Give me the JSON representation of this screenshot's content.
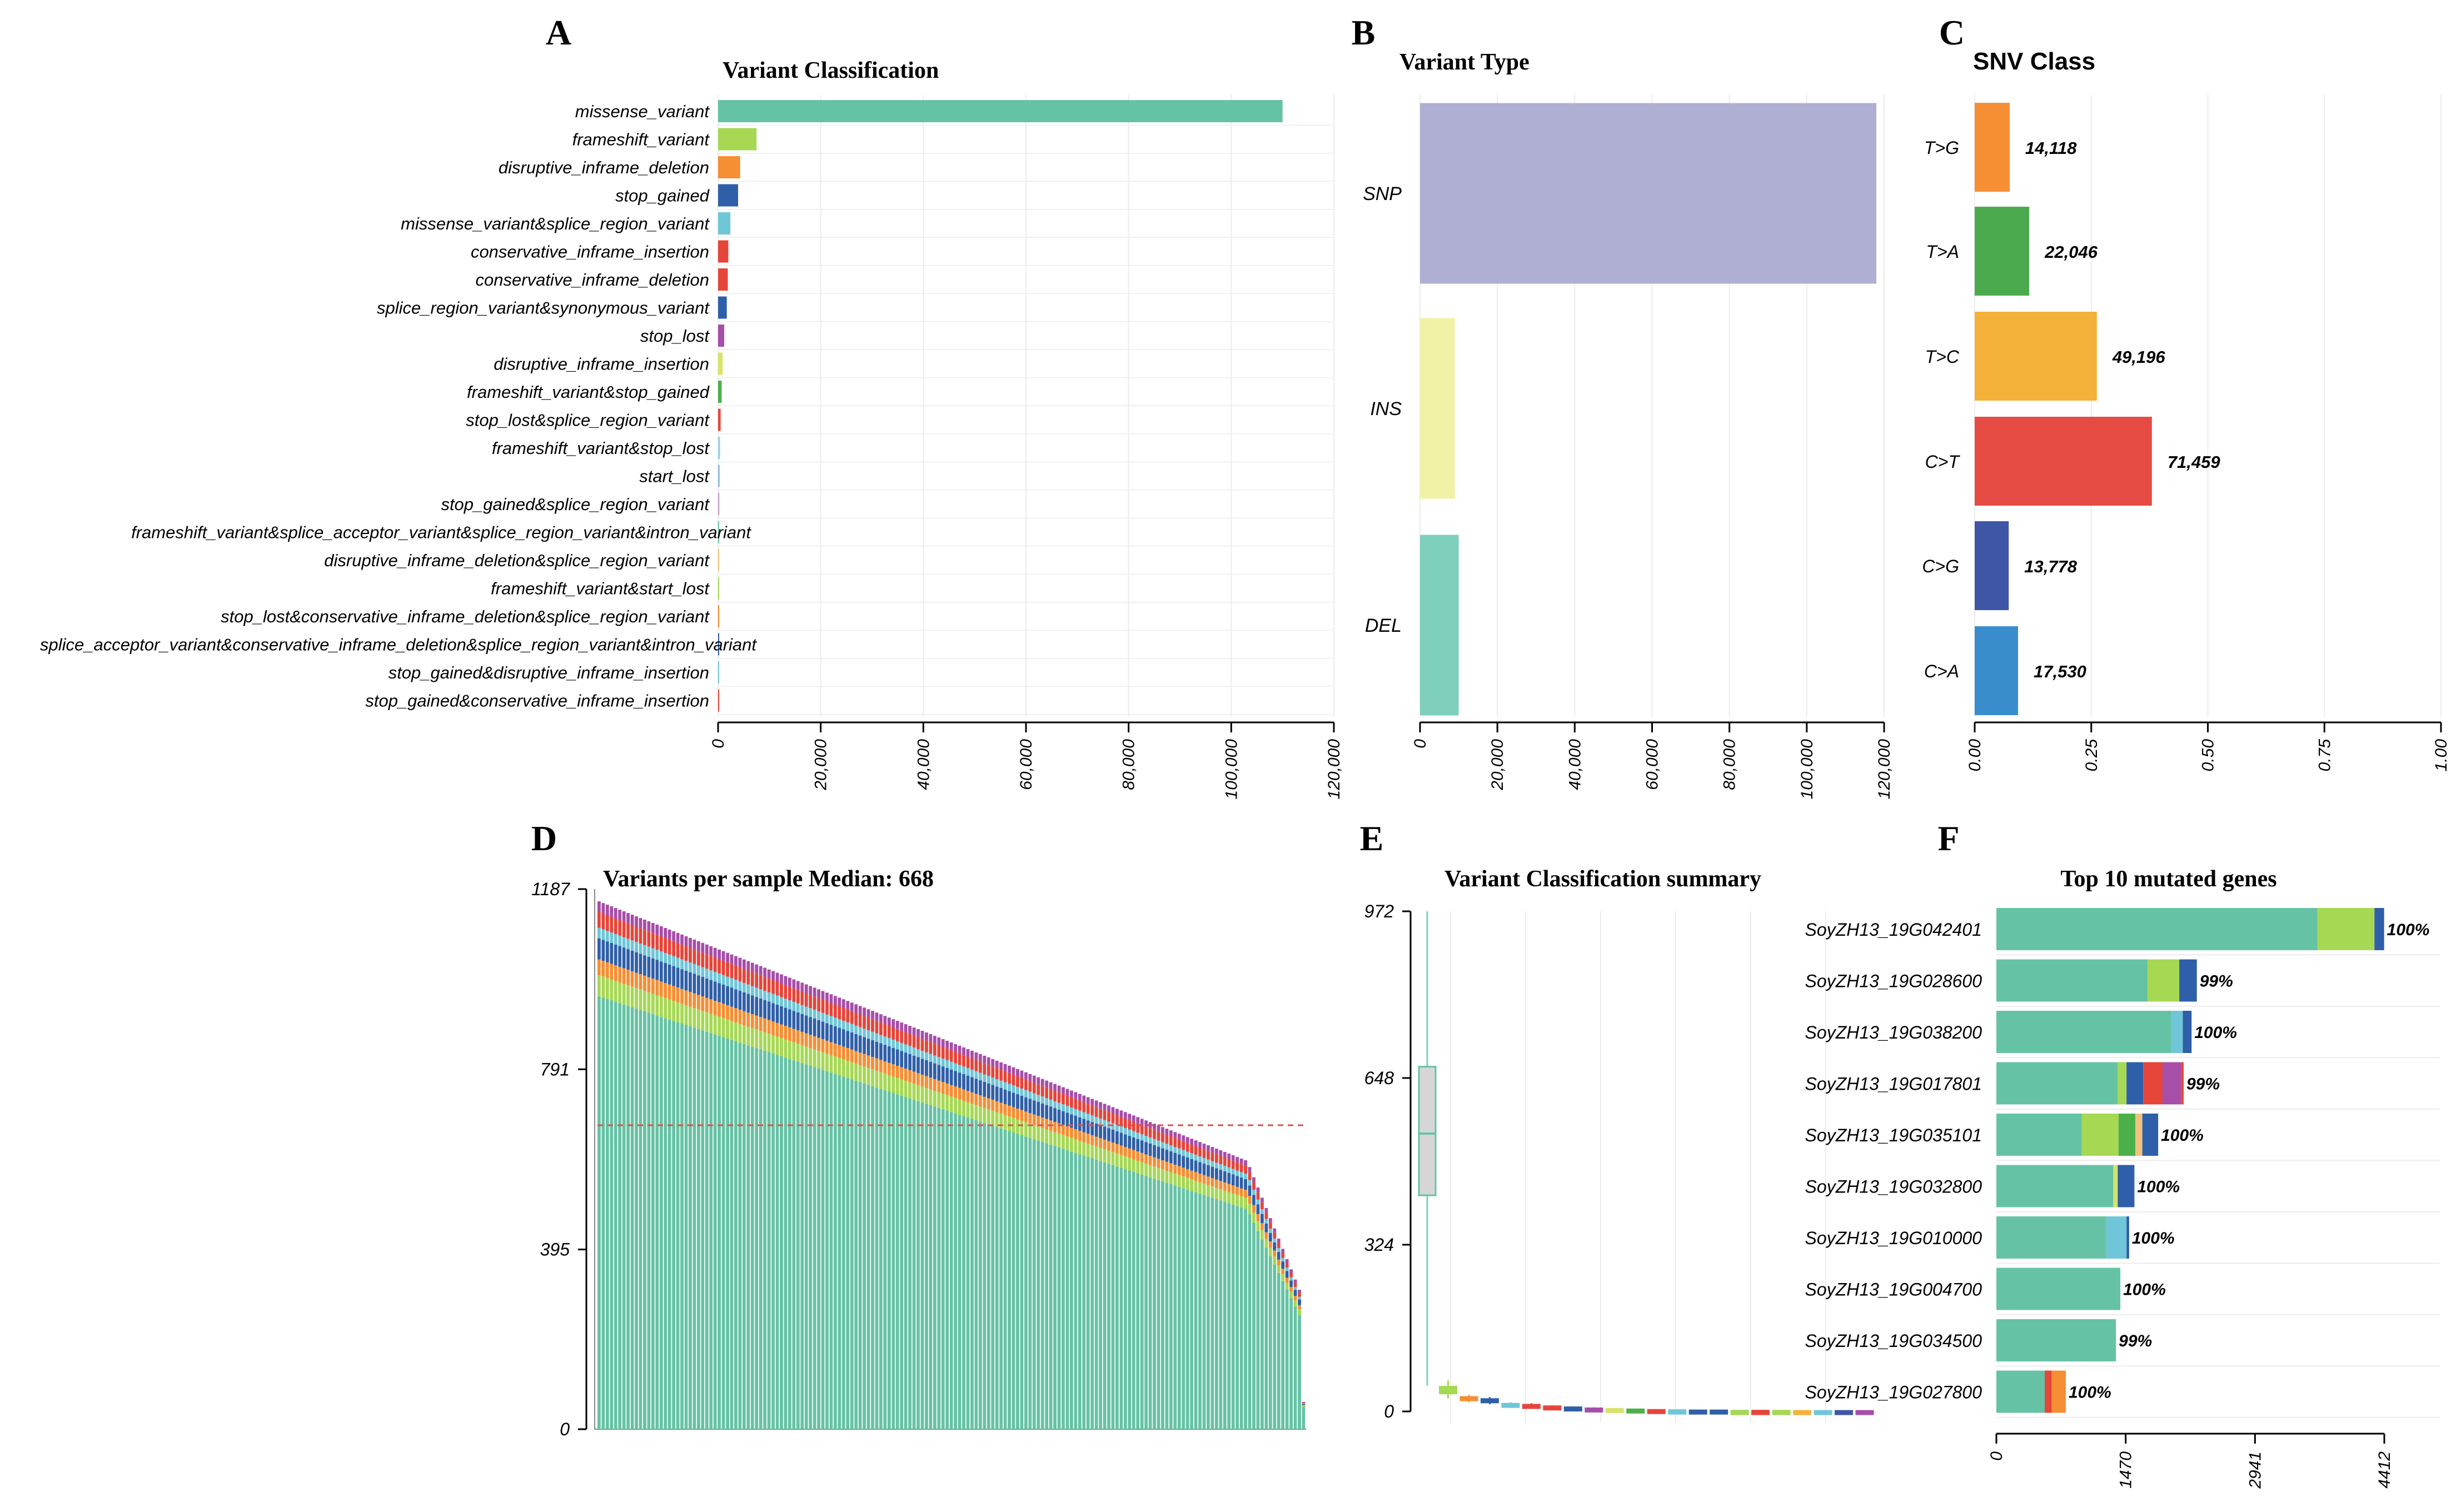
{
  "panel_letters": [
    "A",
    "B",
    "C",
    "D",
    "E",
    "F"
  ],
  "colors": {
    "missense": "#66c2a5",
    "frameshift": "#a6d854",
    "inframe_del": "#f68e33",
    "stop_gained": "#2f5fa8",
    "splice": "#6fc6d8",
    "ins_del": "#e6453a",
    "purple": "#a64ea8",
    "snp": "#aeafd3",
    "ins": "#f1f2a6",
    "del": "#7fcfbd",
    "grid": "#ececec",
    "median_line": "#d9534f"
  },
  "chart_data": [
    {
      "id": "A",
      "type": "bar",
      "orientation": "horizontal",
      "title": "Variant Classification",
      "categories": [
        "missense_variant",
        "frameshift_variant",
        "disruptive_inframe_deletion",
        "stop_gained",
        "missense_variant&splice_region_variant",
        "conservative_inframe_insertion",
        "conservative_inframe_deletion",
        "splice_region_variant&synonymous_variant",
        "stop_lost",
        "disruptive_inframe_insertion",
        "frameshift_variant&stop_gained",
        "stop_lost&splice_region_variant",
        "frameshift_variant&stop_lost",
        "start_lost",
        "stop_gained&splice_region_variant",
        "frameshift_variant&splice_acceptor_variant&splice_region_variant&intron_variant",
        "disruptive_inframe_deletion&splice_region_variant",
        "frameshift_variant&start_lost",
        "stop_lost&conservative_inframe_deletion&splice_region_variant",
        "splice_acceptor_variant&conservative_inframe_deletion&splice_region_variant&intron_variant",
        "stop_gained&disruptive_inframe_insertion",
        "stop_gained&conservative_inframe_insertion"
      ],
      "values": [
        110000,
        7500,
        4300,
        3900,
        2400,
        2000,
        1900,
        1700,
        1200,
        900,
        700,
        500,
        400,
        300,
        250,
        200,
        180,
        150,
        120,
        100,
        80,
        60
      ],
      "colors": [
        "#66c2a5",
        "#a6d854",
        "#f68e33",
        "#2f5fa8",
        "#6fc6d8",
        "#e6453a",
        "#e6453a",
        "#2f5fa8",
        "#a64ea8",
        "#d7e36b",
        "#4bb04a",
        "#e6453a",
        "#9ed0e6",
        "#8fb8e0",
        "#c7a0c7",
        "#66c2a5",
        "#f1c27d",
        "#a6d854",
        "#f68e33",
        "#2f5fa8",
        "#6fc6d8",
        "#e6453a"
      ],
      "xlim": [
        0,
        120000
      ],
      "xticks": [
        "0",
        "20,000",
        "40,000",
        "60,000",
        "80,000",
        "100,000",
        "120,000"
      ]
    },
    {
      "id": "B",
      "type": "bar",
      "orientation": "horizontal",
      "title": "Variant Type",
      "categories": [
        "SNP",
        "INS",
        "DEL"
      ],
      "values": [
        118000,
        9000,
        10000
      ],
      "colors": [
        "#aeafd3",
        "#f1f2a6",
        "#7fcfbd"
      ],
      "xlim": [
        0,
        120000
      ],
      "xticks": [
        "0",
        "20,000",
        "40,000",
        "60,000",
        "80,000",
        "100,000",
        "120,000"
      ]
    },
    {
      "id": "C",
      "type": "bar",
      "orientation": "horizontal",
      "title": "SNV Class",
      "categories": [
        "T>G",
        "T>A",
        "T>C",
        "C>T",
        "C>G",
        "C>A"
      ],
      "labels": [
        "14,118",
        "22,046",
        "49,196",
        "71,459",
        "13,778",
        "17,530"
      ],
      "values": [
        0.075,
        0.117,
        0.262,
        0.38,
        0.073,
        0.093
      ],
      "colors": [
        "#f68e33",
        "#4caa4e",
        "#f4b23a",
        "#e64b43",
        "#3f56a6",
        "#3a8dcc"
      ],
      "xlim": [
        0,
        1
      ],
      "xticks": [
        "0.00",
        "0.25",
        "0.50",
        "0.75",
        "1.00"
      ]
    },
    {
      "id": "D",
      "type": "bar",
      "title": "Variants per sample Median: 668",
      "yticks": [
        "0",
        "395",
        "791",
        "1187"
      ],
      "ylim": [
        0,
        1187
      ],
      "median": 668,
      "series_colors": [
        "#66c2a5",
        "#a6d854",
        "#f68e33",
        "#2f5fa8",
        "#6fc6d8",
        "#e6453a",
        "#a64ea8"
      ],
      "fractions": [
        0.82,
        0.04,
        0.03,
        0.04,
        0.02,
        0.03,
        0.02
      ]
    },
    {
      "id": "E",
      "type": "box",
      "title": "Variant Classification summary",
      "yticks": [
        "0",
        "324",
        "648",
        "972"
      ],
      "ylim": [
        0,
        972
      ],
      "boxes": [
        {
          "min": 50,
          "q1": 420,
          "median": 540,
          "q3": 670,
          "max": 972,
          "color": "#66c2a5"
        },
        {
          "min": 25,
          "q1": 35,
          "median": 40,
          "q3": 48,
          "max": 60,
          "color": "#a6d854"
        },
        {
          "min": 18,
          "q1": 22,
          "median": 25,
          "q3": 28,
          "max": 32,
          "color": "#f68e33"
        },
        {
          "min": 14,
          "q1": 18,
          "median": 21,
          "q3": 24,
          "max": 28,
          "color": "#2f5fa8"
        },
        {
          "min": 8,
          "q1": 11,
          "median": 13,
          "q3": 15,
          "max": 18,
          "color": "#6fc6d8"
        },
        {
          "min": 7,
          "q1": 9,
          "median": 11,
          "q3": 13,
          "max": 16,
          "color": "#e6453a"
        },
        {
          "min": 5,
          "q1": 7,
          "median": 8,
          "q3": 10,
          "max": 12,
          "color": "#e6453a"
        },
        {
          "min": 4,
          "q1": 6,
          "median": 7,
          "q3": 8,
          "max": 10,
          "color": "#2f5fa8"
        },
        {
          "min": 3,
          "q1": 4,
          "median": 5,
          "q3": 6,
          "max": 8,
          "color": "#a64ea8"
        },
        {
          "min": 2,
          "q1": 3,
          "median": 4,
          "q3": 5,
          "max": 6,
          "color": "#d7e36b"
        },
        {
          "min": 2,
          "q1": 3,
          "median": 3,
          "q3": 4,
          "max": 5,
          "color": "#4bb04a"
        },
        {
          "min": 1,
          "q1": 2,
          "median": 2,
          "q3": 3,
          "max": 4,
          "color": "#e6453a"
        },
        {
          "min": 1,
          "q1": 1,
          "median": 2,
          "q3": 2,
          "max": 3,
          "color": "#6fc6d8"
        },
        {
          "min": 0,
          "q1": 1,
          "median": 1,
          "q3": 2,
          "max": 3,
          "color": "#2f5fa8"
        },
        {
          "min": 0,
          "q1": 1,
          "median": 1,
          "q3": 2,
          "max": 2,
          "color": "#2f5fa8"
        },
        {
          "min": 0,
          "q1": 1,
          "median": 1,
          "q3": 1,
          "max": 2,
          "color": "#a6d854"
        },
        {
          "min": 0,
          "q1": 0,
          "median": 1,
          "q3": 1,
          "max": 2,
          "color": "#e6453a"
        },
        {
          "min": 0,
          "q1": 0,
          "median": 1,
          "q3": 1,
          "max": 1,
          "color": "#a6d854"
        },
        {
          "min": 0,
          "q1": 0,
          "median": 0,
          "q3": 1,
          "max": 1,
          "color": "#f4b23a"
        },
        {
          "min": 0,
          "q1": 0,
          "median": 0,
          "q3": 1,
          "max": 1,
          "color": "#6fc6d8"
        },
        {
          "min": 0,
          "q1": 0,
          "median": 0,
          "q3": 1,
          "max": 1,
          "color": "#3f56a6"
        },
        {
          "min": 0,
          "q1": 0,
          "median": 0,
          "q3": 1,
          "max": 1,
          "color": "#a64ea8"
        }
      ]
    },
    {
      "id": "F",
      "type": "bar",
      "orientation": "horizontal",
      "stacked": true,
      "title": "Top 10 mutated genes",
      "genes": [
        "SoyZH13_19G042401",
        "SoyZH13_19G028600",
        "SoyZH13_19G038200",
        "SoyZH13_19G017801",
        "SoyZH13_19G035101",
        "SoyZH13_19G032800",
        "SoyZH13_19G010000",
        "SoyZH13_19G004700",
        "SoyZH13_19G034500",
        "SoyZH13_19G027800"
      ],
      "percents": [
        "100%",
        "99%",
        "100%",
        "99%",
        "100%",
        "100%",
        "100%",
        "100%",
        "99%",
        "100%"
      ],
      "segments": [
        [
          [
            3650,
            "#66c2a5"
          ],
          [
            650,
            "#a6d854"
          ],
          [
            110,
            "#2f5fa8"
          ]
        ],
        [
          [
            1720,
            "#66c2a5"
          ],
          [
            360,
            "#a6d854"
          ],
          [
            200,
            "#2f5fa8"
          ]
        ],
        [
          [
            1990,
            "#66c2a5"
          ],
          [
            130,
            "#6fc6d8"
          ],
          [
            100,
            "#2f5fa8"
          ]
        ],
        [
          [
            1380,
            "#66c2a5"
          ],
          [
            100,
            "#a6d854"
          ],
          [
            190,
            "#2f5fa8"
          ],
          [
            220,
            "#e6453a"
          ],
          [
            210,
            "#a64ea8"
          ],
          [
            30,
            "#e6453a"
          ]
        ],
        [
          [
            970,
            "#66c2a5"
          ],
          [
            420,
            "#a6d854"
          ],
          [
            190,
            "#4bb04a"
          ],
          [
            80,
            "#f1c27d"
          ],
          [
            180,
            "#2f5fa8"
          ]
        ],
        [
          [
            1330,
            "#66c2a5"
          ],
          [
            50,
            "#d7e36b"
          ],
          [
            190,
            "#2f5fa8"
          ]
        ],
        [
          [
            1250,
            "#66c2a5"
          ],
          [
            230,
            "#6fc6d8"
          ],
          [
            30,
            "#2f5fa8"
          ]
        ],
        [
          [
            1410,
            "#66c2a5"
          ]
        ],
        [
          [
            1360,
            "#66c2a5"
          ]
        ],
        [
          [
            550,
            "#66c2a5"
          ],
          [
            80,
            "#e6453a"
          ],
          [
            160,
            "#f68e33"
          ]
        ]
      ],
      "xlim": [
        0,
        4412
      ],
      "xticks": [
        "0",
        "1470",
        "2941",
        "4412"
      ]
    }
  ]
}
